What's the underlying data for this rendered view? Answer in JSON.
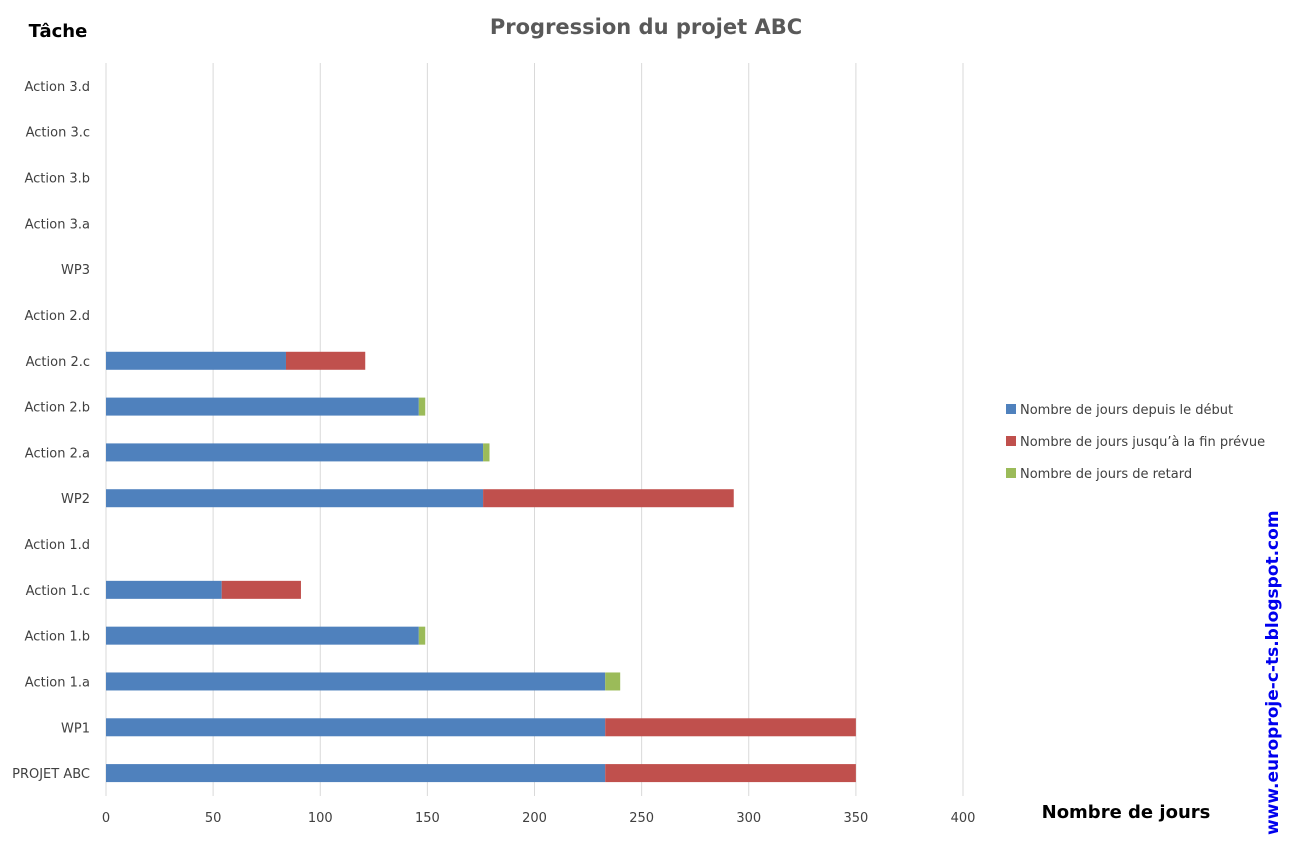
{
  "chart_data": {
    "type": "bar",
    "orientation": "horizontal",
    "stacked": true,
    "title": "Progression du projet ABC",
    "ylabel": "Tâche",
    "xlabel": "Nombre de jours",
    "xlim": [
      0,
      400
    ],
    "xticks": [
      0,
      50,
      100,
      150,
      200,
      250,
      300,
      350,
      400
    ],
    "grid": true,
    "legend_position": "right",
    "categories": [
      "PROJET ABC",
      "WP1",
      "Action 1.a",
      "Action 1.b",
      "Action 1.c",
      "Action 1.d",
      "WP2",
      "Action 2.a",
      "Action 2.b",
      "Action 2.c",
      "Action 2.d",
      "WP3",
      "Action 3.a",
      "Action 3.b",
      "Action 3.c",
      "Action 3.d"
    ],
    "series": [
      {
        "name": "Nombre de jours depuis le début",
        "color": "#4f81bd",
        "values": [
          233,
          233,
          233,
          146,
          54,
          0,
          176,
          176,
          146,
          84,
          0,
          0,
          0,
          0,
          0,
          0
        ]
      },
      {
        "name": "Nombre de jours jusqu’à la fin prévue",
        "color": "#c0504d",
        "values": [
          117,
          117,
          0,
          0,
          37,
          0,
          117,
          0,
          0,
          37,
          0,
          0,
          0,
          0,
          0,
          0
        ]
      },
      {
        "name": "Nombre de jours de retard",
        "color": "#9bbb59",
        "values": [
          0,
          0,
          7,
          3,
          0,
          0,
          0,
          3,
          3,
          0,
          0,
          0,
          0,
          0,
          0,
          0
        ]
      }
    ]
  },
  "watermark": "www.europroje-c-ts.blogspot.com"
}
